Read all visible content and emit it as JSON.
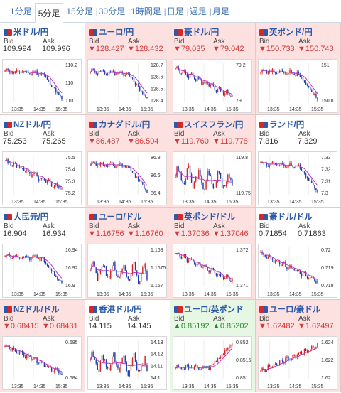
{
  "tabs": [
    {
      "label": "1分足",
      "active": false
    },
    {
      "label": "5分足",
      "active": true
    },
    {
      "label": "15分足",
      "active": false
    },
    {
      "label": "30分足",
      "active": false
    },
    {
      "label": "1時間足",
      "active": false
    },
    {
      "label": "日足",
      "active": false
    },
    {
      "label": "週足",
      "active": false
    },
    {
      "label": "月足",
      "active": false
    }
  ],
  "colors": {
    "down": "#d43a3a",
    "up": "#2a8a2a",
    "link": "#2c5aa8",
    "candle_up": "#d62828",
    "candle_down": "#1f3fb0",
    "ma": "#c033c0"
  },
  "pairs": [
    {
      "name": "米ドル/円",
      "dir": "neutral",
      "bid": "109.994",
      "ask": "109.996",
      "ticks": [
        "110.2",
        "110",
        "110"
      ],
      "times": [
        "13:35",
        "14:35",
        "15:35"
      ],
      "trend": "down-late",
      "chart_data": {
        "type": "candlestick",
        "ylim": [
          109.9,
          110.25
        ],
        "ticks": [
          110.2,
          110.0
        ],
        "x_ticks": [
          "13:35",
          "14:35",
          "15:35"
        ]
      }
    },
    {
      "name": "ユーロ/円",
      "dir": "down",
      "bid": "▼128.427",
      "ask": "▼128.432",
      "ticks": [
        "128.7",
        "128.6",
        "128.5",
        "128.4"
      ],
      "times": [
        "13:35",
        "14:35",
        "15:35"
      ],
      "trend": "down-late"
    },
    {
      "name": "豪ドル/円",
      "dir": "down",
      "bid": "▼79.035",
      "ask": "▼79.042",
      "ticks": [
        "79.2",
        "79"
      ],
      "times": [
        "13:35",
        "14:35",
        "15:35"
      ],
      "trend": "down-steady"
    },
    {
      "name": "英ポンド/円",
      "dir": "down",
      "bid": "▼150.733",
      "ask": "▼150.743",
      "ticks": [
        "151",
        "150.8"
      ],
      "times": [
        "13:35",
        "14:35",
        "15:35"
      ],
      "trend": "down-late"
    },
    {
      "name": "NZドル/円",
      "dir": "neutral",
      "bid": "75.253",
      "ask": "75.265",
      "ticks": [
        "75.5",
        "75.4",
        "75.3",
        "75.2"
      ],
      "times": [
        "13:35",
        "14:35",
        "15:35"
      ],
      "trend": "down-steady"
    },
    {
      "name": "カナダドル/円",
      "dir": "down",
      "bid": "▼86.487",
      "ask": "▼86.504",
      "ticks": [
        "86.8",
        "86.6",
        "86.4"
      ],
      "times": [
        "13:35",
        "14:35",
        "15:35"
      ],
      "trend": "down-late"
    },
    {
      "name": "スイスフラン/円",
      "dir": "down",
      "bid": "▼119.760",
      "ask": "▼119.778",
      "ticks": [
        "119.8",
        "119.75"
      ],
      "times": [
        "13:35",
        "14:35",
        "15:35"
      ],
      "trend": "spiky"
    },
    {
      "name": "ランド/円",
      "dir": "neutral",
      "bid": "7.316",
      "ask": "7.329",
      "ticks": [
        "7.33",
        "7.32",
        "7.31",
        "7.3"
      ],
      "times": [
        "13:35",
        "14:35",
        "15:35"
      ],
      "trend": "down-late"
    },
    {
      "name": "人民元/円",
      "dir": "neutral",
      "bid": "16.904",
      "ask": "16.934",
      "ticks": [
        "16.94",
        "16.92",
        "16.9"
      ],
      "times": [
        "13:35",
        "14:35",
        "15:35"
      ],
      "trend": "down-late"
    },
    {
      "name": "ユーロ/ドル",
      "dir": "down",
      "bid": "▼1.16756",
      "ask": "▼1.16760",
      "ticks": [
        "1.168",
        "1.1675",
        "1.167"
      ],
      "times": [
        "13:35",
        "14:35",
        "15:35"
      ],
      "trend": "spiky"
    },
    {
      "name": "英ポンド/ドル",
      "dir": "down",
      "bid": "▼1.37036",
      "ask": "▼1.37046",
      "ticks": [
        "1.372",
        "1.371"
      ],
      "times": [
        "13:35",
        "14:35",
        "15:35"
      ],
      "trend": "down-steady"
    },
    {
      "name": "豪ドル/ドル",
      "dir": "neutral",
      "bid": "0.71854",
      "ask": "0.71863",
      "ticks": [
        "0.72",
        "0.719",
        "0.718"
      ],
      "times": [
        "13:35",
        "14:35",
        "15:35"
      ],
      "trend": "down-steady"
    },
    {
      "name": "NZドル/ドル",
      "dir": "down",
      "bid": "▼0.68415",
      "ask": "▼0.68431",
      "ticks": [
        "0.685",
        "0.684"
      ],
      "times": [
        "13:35",
        "14:35",
        "15:35"
      ],
      "trend": "down-steady"
    },
    {
      "name": "香港ドル/円",
      "dir": "neutral",
      "bid": "14.115",
      "ask": "14.145",
      "ticks": [
        "14.13",
        "14.12",
        "14.11",
        "14.1"
      ],
      "times": [
        "13:35",
        "14:35",
        "15:35"
      ],
      "trend": "spiky"
    },
    {
      "name": "ユーロ/英ポンド",
      "dir": "up",
      "bid": "▲0.85192",
      "ask": "▲0.85202",
      "ticks": [
        "0.852",
        "0.8515",
        "0.851"
      ],
      "times": [
        "13:35",
        "14:35",
        "15:35"
      ],
      "trend": "up-late"
    },
    {
      "name": "ユーロ/豪ドル",
      "dir": "down",
      "bid": "▼1.62482",
      "ask": "▼1.62497",
      "ticks": [
        "1.624",
        "1.622",
        "1.62"
      ],
      "times": [
        "13:35",
        "14:35",
        "15:35"
      ],
      "trend": "up-steady"
    }
  ]
}
